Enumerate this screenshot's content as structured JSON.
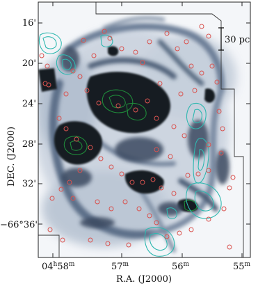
{
  "figure": {
    "x_axis": {
      "title": "R.A. (J2000)",
      "ticks": [
        {
          "main": "04",
          "sup1": "h",
          "mid": "58",
          "sup2": "m"
        },
        {
          "main": "57",
          "sup1": "",
          "mid": "",
          "sup2": "m"
        },
        {
          "main": "56",
          "sup1": "",
          "mid": "",
          "sup2": "m"
        },
        {
          "main": "55",
          "sup1": "",
          "mid": "",
          "sup2": "m"
        }
      ]
    },
    "y_axis": {
      "title": "DEC. (J2000)",
      "ticks": [
        "16'",
        "20'",
        "24'",
        "28'",
        "32'",
        "−66°36'"
      ]
    },
    "scale_bar": {
      "label": "30 pc"
    },
    "colors": {
      "image": "#1a2230",
      "contour_cyan": "#2fb8b0",
      "contour_green": "#1f8a3a",
      "marker_red": "#d9534f",
      "frame": "#222222"
    }
  }
}
